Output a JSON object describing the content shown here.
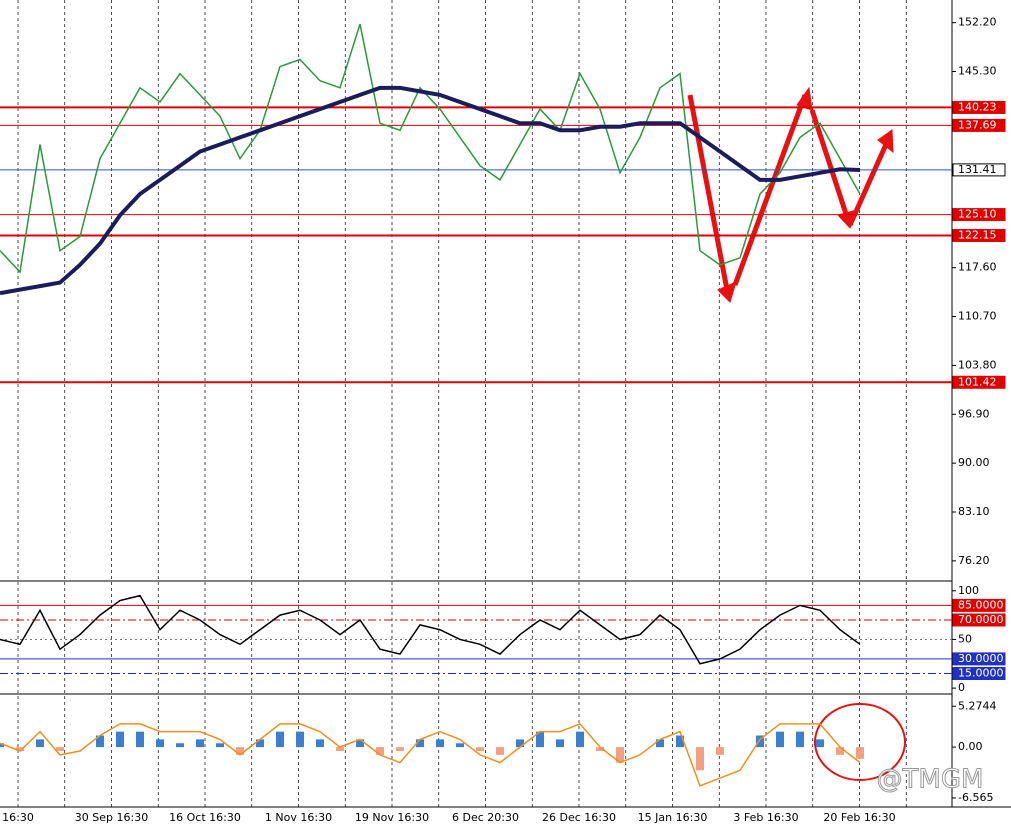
{
  "chart_data": [
    {
      "type": "line",
      "ylim": [
        73.5,
        155.4
      ],
      "yticks": [
        {
          "value": 152.2,
          "label": "152.20"
        },
        {
          "value": 145.3,
          "label": "145.30"
        },
        {
          "value": 117.6,
          "label": "117.60"
        },
        {
          "value": 110.7,
          "label": "110.70"
        },
        {
          "value": 103.8,
          "label": "103.80"
        },
        {
          "value": 96.9,
          "label": "96.90"
        },
        {
          "value": 90,
          "label": "90.00"
        },
        {
          "value": 83.1,
          "label": "83.10"
        },
        {
          "value": 76.2,
          "label": "76.20"
        }
      ],
      "levels": [
        {
          "value": 140.23,
          "label": "140.23",
          "color": "#e00000"
        },
        {
          "value": 137.69,
          "label": "137.69",
          "color": "#e00000"
        },
        {
          "value": 131.41,
          "label": "131.41",
          "color": "#3050d0"
        },
        {
          "value": 125.1,
          "label": "125.10",
          "color": "#e00000"
        },
        {
          "value": 122.15,
          "label": "122.15",
          "color": "#e00000"
        },
        {
          "value": 101.42,
          "label": "101.42",
          "color": "#e00000"
        }
      ],
      "series": [
        {
          "color": "#2a9a3a",
          "values": [
            120,
            117,
            135,
            120,
            122,
            133,
            138,
            143,
            141,
            145,
            142,
            139,
            133,
            137,
            146,
            147,
            144,
            143,
            152,
            138,
            137,
            143,
            140,
            136,
            132,
            130,
            135,
            140,
            137,
            145,
            140,
            131,
            136,
            143,
            145,
            120,
            118,
            119,
            128,
            131,
            136,
            138,
            133,
            128
          ]
        },
        {
          "color": "#1c1c5c",
          "values": [
            114,
            114.5,
            115,
            115.5,
            118,
            121,
            125,
            128,
            130,
            132,
            134,
            135,
            136,
            137,
            138,
            139,
            140,
            141,
            142,
            143,
            143,
            142.5,
            142,
            141,
            140,
            139,
            138,
            138,
            137,
            137,
            137.5,
            137.5,
            138,
            138,
            138,
            136,
            134,
            132,
            130,
            130,
            130.5,
            131,
            131.5,
            131.4
          ]
        }
      ]
    },
    {
      "type": "line",
      "ylim": [
        -4,
        108
      ],
      "yticks": [
        100,
        50,
        0
      ],
      "levels": [
        {
          "value": 85,
          "label": "85.0000",
          "color": "#e00000"
        },
        {
          "value": 70,
          "label": "70.0000",
          "color": "#e00000"
        },
        {
          "value": 30,
          "label": "30.0000",
          "color": "#2030c0"
        },
        {
          "value": 15,
          "label": "15.0000",
          "color": "#2030c0"
        }
      ],
      "series": [
        {
          "color": "#000000",
          "values": [
            50,
            45,
            80,
            40,
            55,
            75,
            90,
            95,
            60,
            80,
            70,
            55,
            45,
            60,
            75,
            80,
            70,
            55,
            70,
            40,
            35,
            65,
            60,
            50,
            45,
            35,
            55,
            70,
            60,
            80,
            65,
            50,
            55,
            75,
            60,
            25,
            30,
            40,
            60,
            75,
            85,
            80,
            60,
            45
          ]
        }
      ]
    },
    {
      "type": "bar",
      "ylim": [
        -7.6,
        6.6
      ],
      "yticks": [
        5.2744,
        {
          "value": 0,
          "label": "0.00"
        },
        -6.565
      ],
      "pos_color": "#3a7fd0",
      "neg_color": "#f4a080",
      "values": [
        0.5,
        -0.5,
        1,
        -0.5,
        0,
        1.5,
        2,
        2,
        1,
        0.5,
        1,
        0.5,
        -1,
        1,
        2,
        2,
        1,
        -0.5,
        1,
        -1,
        -0.5,
        1,
        1,
        0.5,
        -0.5,
        -1,
        1,
        2,
        1,
        2,
        -0.5,
        -2,
        0,
        1,
        1.5,
        -3,
        -1,
        0,
        1.5,
        2,
        2,
        1,
        -1,
        -1.5
      ],
      "series": [
        {
          "color": "#f09020",
          "values": [
            0.5,
            -0.5,
            2,
            -1,
            -0.5,
            1.5,
            3,
            3,
            2,
            2,
            2,
            1,
            -1,
            1,
            3,
            3,
            2,
            0,
            1,
            -1,
            -2,
            1,
            2,
            1,
            -1,
            -2,
            0,
            2,
            2,
            3,
            0,
            -2,
            -1,
            1,
            2,
            -5,
            -4,
            -3,
            1,
            3,
            3,
            3,
            0,
            -2
          ]
        }
      ],
      "xtick_labels": [
        "16:30",
        "30 Sep 16:30",
        "16 Oct 16:30",
        "1 Nov 16:30",
        "19 Nov 16:30",
        "6 Dec 20:30",
        "26 Dec 16:30",
        "15 Jan 16:30",
        "3 Feb 16:30",
        "20 Feb 16:30"
      ]
    }
  ],
  "watermark": "@TMGM"
}
